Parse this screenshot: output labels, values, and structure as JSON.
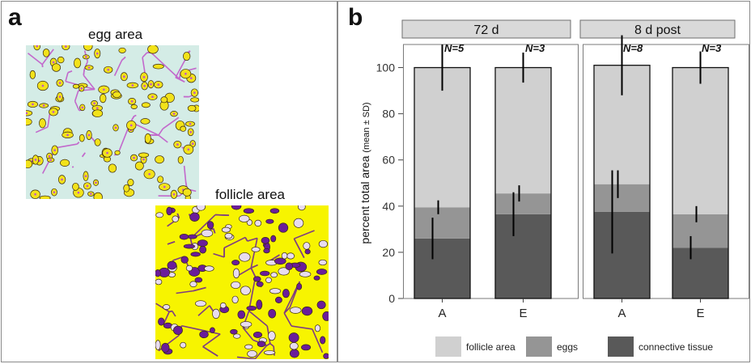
{
  "panel_a": {
    "letter": "a",
    "images": [
      {
        "caption": "egg area",
        "stain_color": "#c053c8",
        "highlight_color": "#f2e21a",
        "background_color": "#d4ece6"
      },
      {
        "caption": "follicle area",
        "stain_color": "#6a1d9a",
        "highlight_color": "#f7f400",
        "background_color": "#f7f400"
      }
    ]
  },
  "panel_b": {
    "letter": "b"
  },
  "chart_data": {
    "type": "bar",
    "stacked": true,
    "ylabel": "percent total area",
    "ylabel_suffix": "(mean ± SD)",
    "ylim": [
      0,
      110
    ],
    "yticks": [
      0,
      20,
      40,
      60,
      80,
      100
    ],
    "groups": [
      {
        "header": "72 d",
        "categories": [
          "A",
          "E"
        ],
        "n_labels": [
          "N=5",
          "N=3"
        ]
      },
      {
        "header": "8 d post",
        "categories": [
          "A",
          "E"
        ],
        "n_labels": [
          "N=8",
          "N=3"
        ]
      }
    ],
    "categories": [
      "A",
      "E",
      "A",
      "E"
    ],
    "series": [
      {
        "name": "connective tissue",
        "color": "#595959",
        "values": [
          26,
          36.5,
          37.5,
          22
        ],
        "sd": [
          9,
          9.5,
          18,
          5
        ]
      },
      {
        "name": "eggs",
        "color": "#959595",
        "values": [
          13.5,
          9,
          12,
          14.5
        ],
        "sd": [
          3,
          3.5,
          6,
          3.5
        ]
      },
      {
        "name": "follicle area",
        "color": "#d0d0d0",
        "values": [
          60.5,
          54.5,
          51.5,
          63.5
        ],
        "sd": [
          10,
          6.5,
          13,
          7
        ]
      }
    ],
    "legend_position": "bottom"
  }
}
